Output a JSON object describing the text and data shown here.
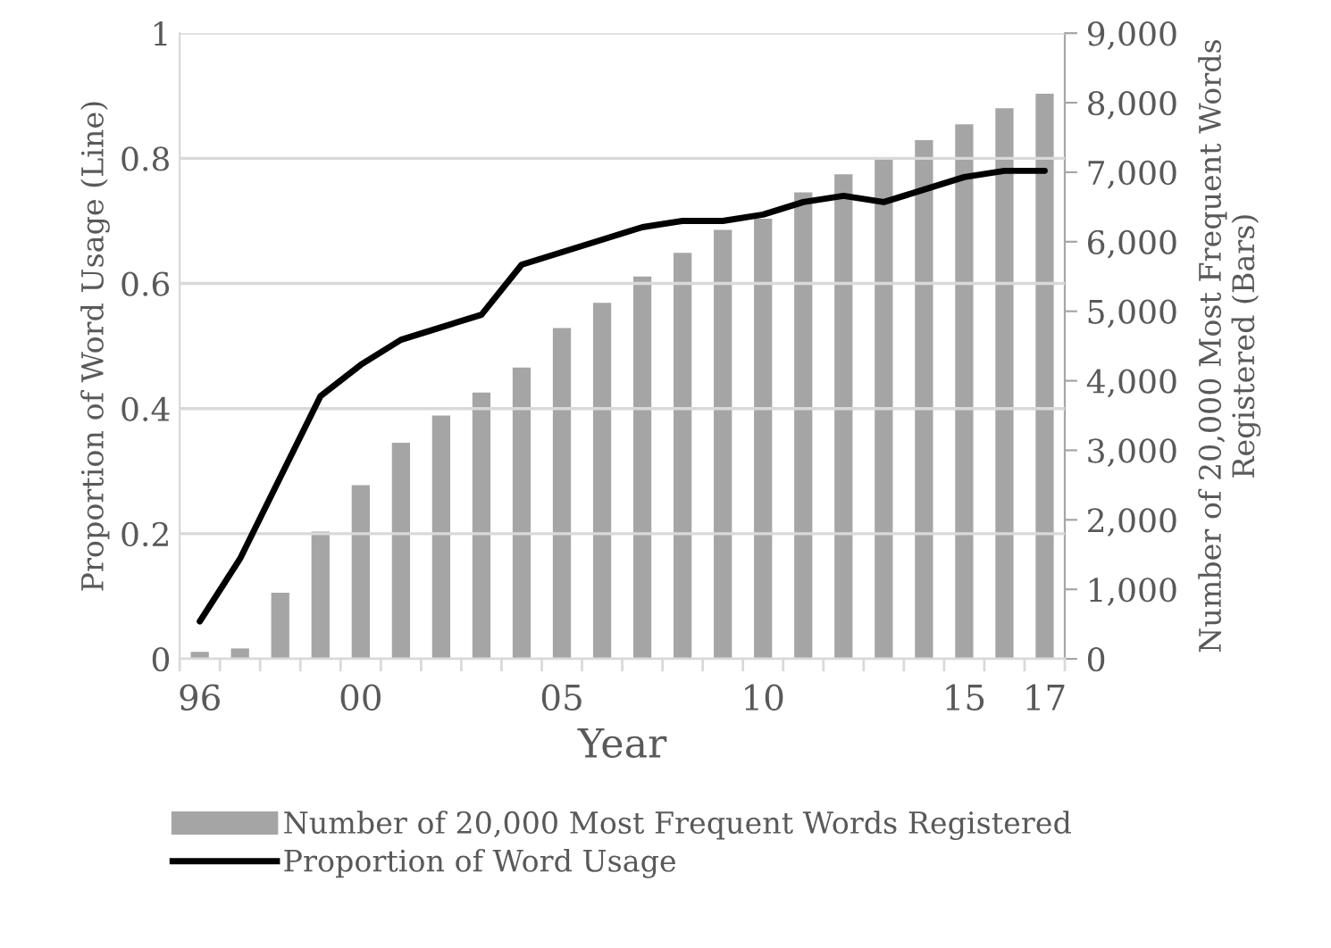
{
  "chart_data": {
    "type": "bar",
    "xlabel": "Year",
    "ylabel": "Proportion of Word Usage (Line)",
    "y2label": "Number of 20,000 Most Frequent Words Registered (Bars)",
    "categories": [
      "96",
      null,
      null,
      null,
      "00",
      null,
      null,
      null,
      null,
      "05",
      null,
      null,
      null,
      null,
      "10",
      null,
      null,
      null,
      null,
      "15",
      null,
      "17"
    ],
    "series": [
      {
        "name": "Number of 20,000 Most Frequent Words Registered",
        "axis": "y2",
        "color": "#a5a5a5",
        "values": [
          100,
          150,
          950,
          1830,
          2500,
          3110,
          3500,
          3830,
          4190,
          4760,
          5120,
          5500,
          5840,
          6170,
          6330,
          6710,
          6970,
          7200,
          7460,
          7690,
          7920,
          8130
        ]
      },
      {
        "name": "Proportion of Word Usage",
        "type": "line",
        "color": "#000000",
        "values": [
          0.06,
          0.16,
          0.29,
          0.42,
          0.47,
          0.51,
          0.53,
          0.55,
          0.63,
          0.65,
          0.67,
          0.69,
          0.7,
          0.7,
          0.71,
          0.73,
          0.74,
          0.73,
          0.75,
          0.77,
          0.78,
          0.78
        ]
      }
    ],
    "ylim": [
      0,
      1
    ],
    "yticks": [
      0,
      0.2,
      0.4,
      0.6,
      0.8,
      1
    ],
    "y2lim": [
      0,
      9000
    ],
    "y2ticks": [
      0,
      {
        "value": 1000,
        "label": "1,000"
      },
      {
        "value": 2000,
        "label": "2,000"
      },
      {
        "value": 3000,
        "label": "3,000"
      },
      {
        "value": 4000,
        "label": "4,000"
      },
      {
        "value": 5000,
        "label": "5,000"
      },
      {
        "value": 6000,
        "label": "6,000"
      },
      {
        "value": 7000,
        "label": "7,000"
      },
      {
        "value": 8000,
        "label": "8,000"
      },
      {
        "value": 9000,
        "label": "9,000"
      }
    ],
    "grid": "y",
    "legend": "bottom"
  }
}
